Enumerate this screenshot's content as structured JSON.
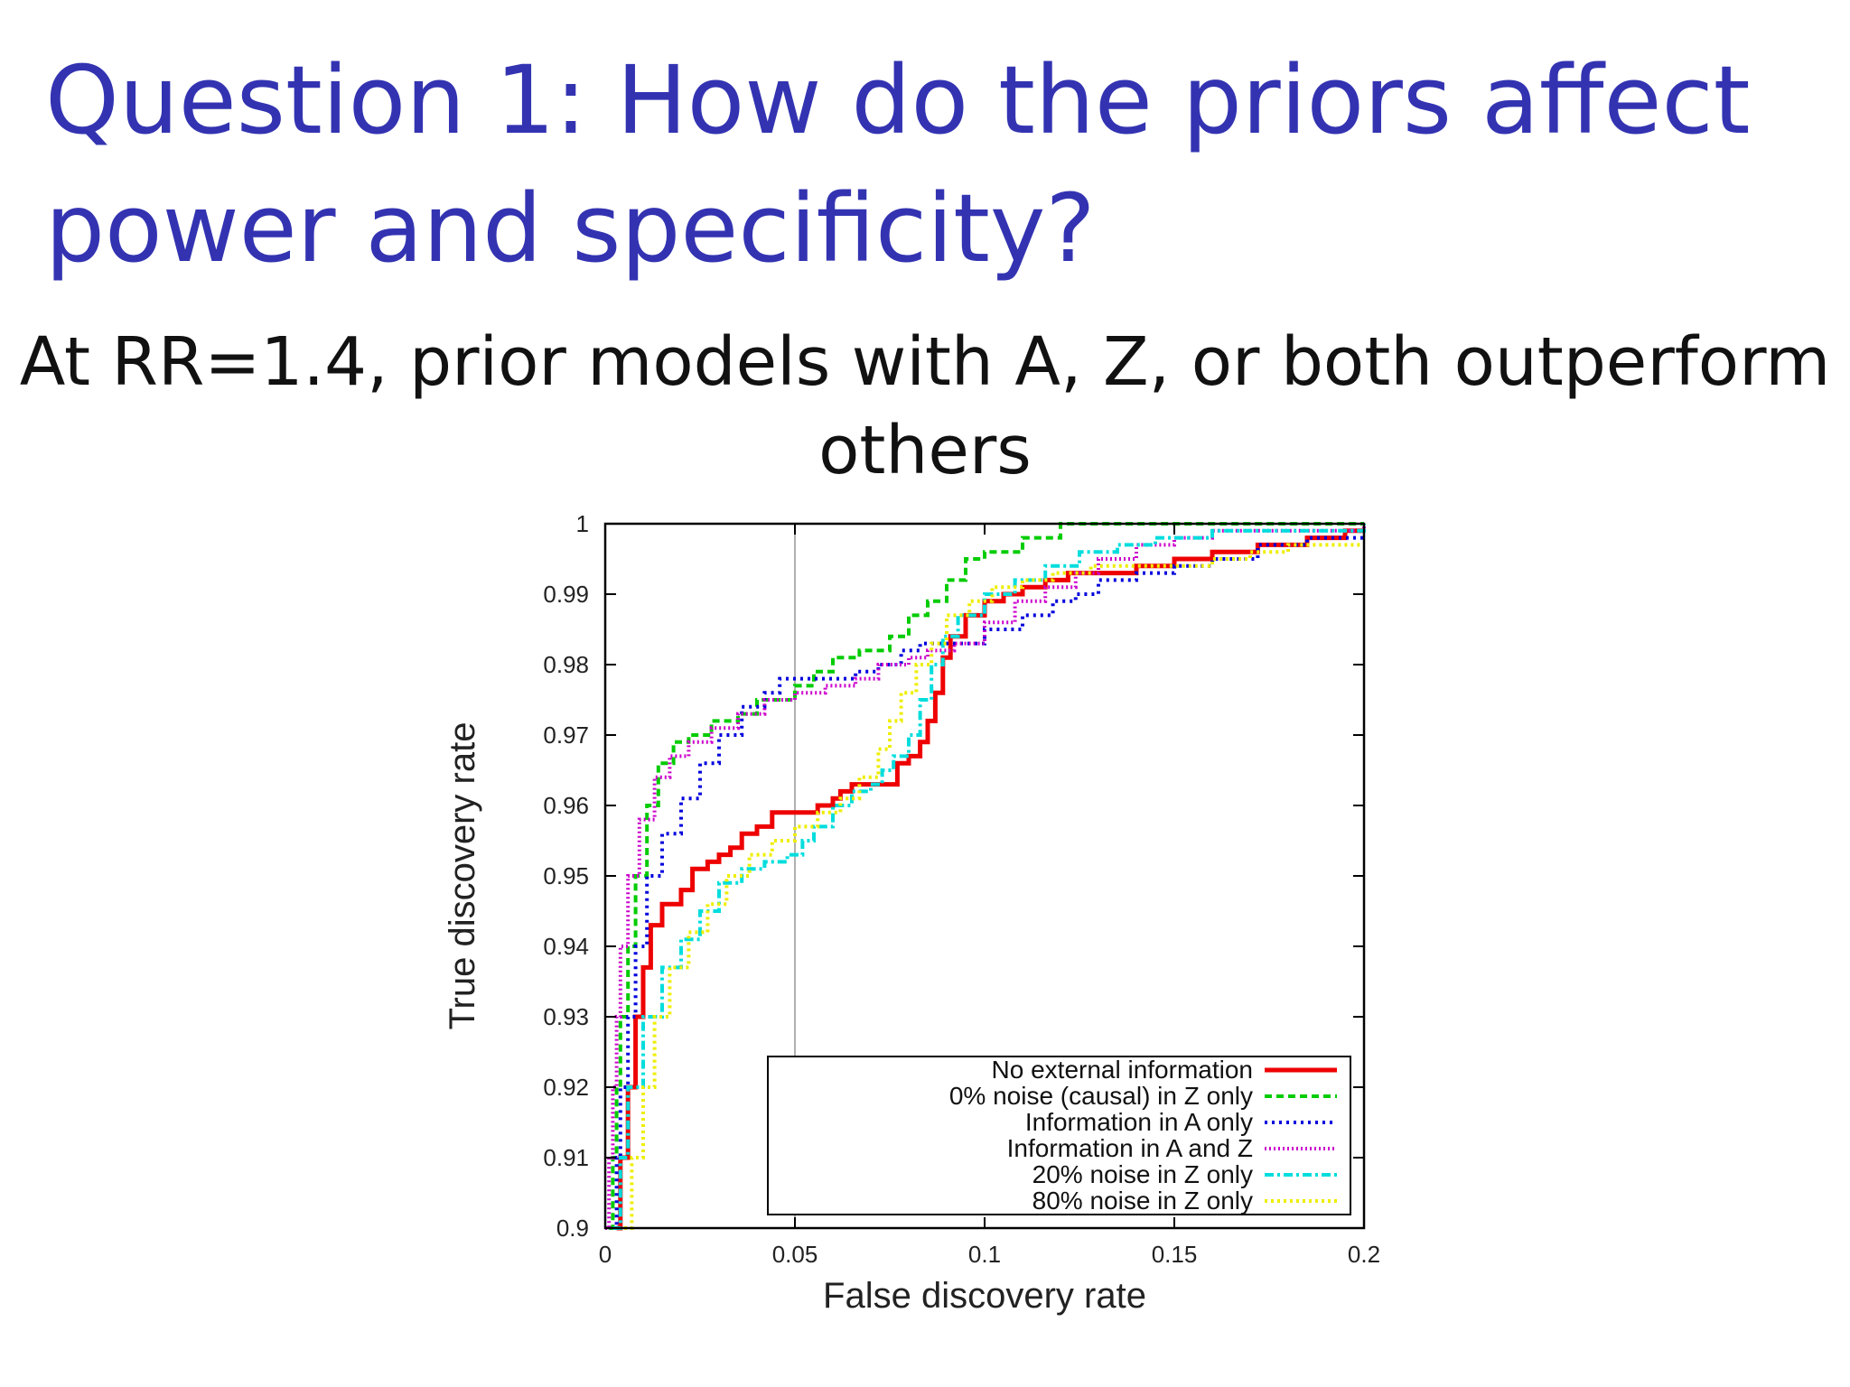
{
  "slide": {
    "title": "Question 1: How do the priors affect power and specificity?",
    "subtitle": "At RR=1.4, prior models with A, Z, or both outperform others"
  },
  "chart_data": {
    "type": "line",
    "xlabel": "False discovery rate",
    "ylabel": "True discovery rate",
    "xlim": [
      0,
      0.2
    ],
    "ylim": [
      0.9,
      1.0
    ],
    "x_ticks": [
      "0",
      "0.05",
      "0.1",
      "0.15",
      "0.2"
    ],
    "y_ticks": [
      "0.9",
      "0.91",
      "0.92",
      "0.93",
      "0.94",
      "0.95",
      "0.96",
      "0.97",
      "0.98",
      "0.99",
      "1"
    ],
    "reference_line_x": 0.05,
    "legend_position": "bottom-right",
    "series": [
      {
        "name": "No external information",
        "color": "#ee0000",
        "dash": "solid",
        "points": [
          [
            0.003,
            0.9
          ],
          [
            0.004,
            0.91
          ],
          [
            0.006,
            0.92
          ],
          [
            0.008,
            0.93
          ],
          [
            0.01,
            0.937
          ],
          [
            0.012,
            0.943
          ],
          [
            0.015,
            0.946
          ],
          [
            0.02,
            0.948
          ],
          [
            0.023,
            0.951
          ],
          [
            0.027,
            0.952
          ],
          [
            0.03,
            0.953
          ],
          [
            0.033,
            0.954
          ],
          [
            0.036,
            0.956
          ],
          [
            0.04,
            0.957
          ],
          [
            0.044,
            0.959
          ],
          [
            0.048,
            0.959
          ],
          [
            0.052,
            0.959
          ],
          [
            0.056,
            0.96
          ],
          [
            0.06,
            0.961
          ],
          [
            0.062,
            0.962
          ],
          [
            0.065,
            0.963
          ],
          [
            0.07,
            0.963
          ],
          [
            0.075,
            0.963
          ],
          [
            0.077,
            0.966
          ],
          [
            0.08,
            0.967
          ],
          [
            0.083,
            0.969
          ],
          [
            0.085,
            0.972
          ],
          [
            0.087,
            0.976
          ],
          [
            0.089,
            0.981
          ],
          [
            0.091,
            0.984
          ],
          [
            0.095,
            0.987
          ],
          [
            0.1,
            0.989
          ],
          [
            0.105,
            0.99
          ],
          [
            0.11,
            0.991
          ],
          [
            0.116,
            0.992
          ],
          [
            0.122,
            0.993
          ],
          [
            0.13,
            0.993
          ],
          [
            0.14,
            0.994
          ],
          [
            0.15,
            0.995
          ],
          [
            0.16,
            0.996
          ],
          [
            0.172,
            0.997
          ],
          [
            0.185,
            0.998
          ],
          [
            0.195,
            0.999
          ],
          [
            0.2,
            0.999
          ]
        ]
      },
      {
        "name": "0% noise (causal) in Z only",
        "color": "#00cc00",
        "dash": "8,5",
        "points": [
          [
            0.001,
            0.9
          ],
          [
            0.002,
            0.91
          ],
          [
            0.003,
            0.92
          ],
          [
            0.004,
            0.93
          ],
          [
            0.006,
            0.94
          ],
          [
            0.008,
            0.95
          ],
          [
            0.011,
            0.96
          ],
          [
            0.014,
            0.966
          ],
          [
            0.018,
            0.969
          ],
          [
            0.022,
            0.97
          ],
          [
            0.028,
            0.972
          ],
          [
            0.035,
            0.973
          ],
          [
            0.04,
            0.975
          ],
          [
            0.045,
            0.975
          ],
          [
            0.05,
            0.977
          ],
          [
            0.055,
            0.979
          ],
          [
            0.06,
            0.981
          ],
          [
            0.067,
            0.982
          ],
          [
            0.075,
            0.984
          ],
          [
            0.08,
            0.987
          ],
          [
            0.085,
            0.989
          ],
          [
            0.09,
            0.992
          ],
          [
            0.095,
            0.995
          ],
          [
            0.1,
            0.996
          ],
          [
            0.11,
            0.998
          ],
          [
            0.12,
            1.0
          ],
          [
            0.2,
            1.0
          ]
        ]
      },
      {
        "name": "Information in A only",
        "color": "#0000dd",
        "dash": "3,5",
        "points": [
          [
            0.002,
            0.9
          ],
          [
            0.003,
            0.91
          ],
          [
            0.004,
            0.92
          ],
          [
            0.006,
            0.93
          ],
          [
            0.008,
            0.94
          ],
          [
            0.011,
            0.95
          ],
          [
            0.015,
            0.956
          ],
          [
            0.02,
            0.961
          ],
          [
            0.025,
            0.966
          ],
          [
            0.03,
            0.97
          ],
          [
            0.036,
            0.974
          ],
          [
            0.042,
            0.976
          ],
          [
            0.046,
            0.978
          ],
          [
            0.052,
            0.978
          ],
          [
            0.06,
            0.978
          ],
          [
            0.066,
            0.979
          ],
          [
            0.072,
            0.98
          ],
          [
            0.078,
            0.982
          ],
          [
            0.083,
            0.983
          ],
          [
            0.088,
            0.983
          ],
          [
            0.095,
            0.983
          ],
          [
            0.1,
            0.985
          ],
          [
            0.11,
            0.987
          ],
          [
            0.118,
            0.989
          ],
          [
            0.124,
            0.99
          ],
          [
            0.13,
            0.992
          ],
          [
            0.14,
            0.993
          ],
          [
            0.15,
            0.994
          ],
          [
            0.16,
            0.995
          ],
          [
            0.172,
            0.997
          ],
          [
            0.185,
            0.998
          ],
          [
            0.2,
            0.998
          ]
        ]
      },
      {
        "name": "Information in A and Z",
        "color": "#cc00cc",
        "dash": "2,3",
        "points": [
          [
            0.0,
            0.9
          ],
          [
            0.001,
            0.91
          ],
          [
            0.002,
            0.92
          ],
          [
            0.003,
            0.93
          ],
          [
            0.004,
            0.94
          ],
          [
            0.006,
            0.95
          ],
          [
            0.009,
            0.958
          ],
          [
            0.013,
            0.964
          ],
          [
            0.017,
            0.967
          ],
          [
            0.022,
            0.969
          ],
          [
            0.028,
            0.971
          ],
          [
            0.035,
            0.973
          ],
          [
            0.042,
            0.975
          ],
          [
            0.05,
            0.976
          ],
          [
            0.058,
            0.977
          ],
          [
            0.066,
            0.978
          ],
          [
            0.072,
            0.98
          ],
          [
            0.08,
            0.981
          ],
          [
            0.085,
            0.982
          ],
          [
            0.092,
            0.983
          ],
          [
            0.1,
            0.986
          ],
          [
            0.108,
            0.989
          ],
          [
            0.116,
            0.991
          ],
          [
            0.124,
            0.993
          ],
          [
            0.13,
            0.995
          ],
          [
            0.14,
            0.997
          ],
          [
            0.15,
            0.998
          ],
          [
            0.16,
            0.999
          ],
          [
            0.2,
            1.0
          ]
        ]
      },
      {
        "name": "20% noise in Z only",
        "color": "#00dddd",
        "dash": "10,4,3,4",
        "points": [
          [
            0.002,
            0.9
          ],
          [
            0.004,
            0.91
          ],
          [
            0.006,
            0.92
          ],
          [
            0.01,
            0.93
          ],
          [
            0.015,
            0.937
          ],
          [
            0.02,
            0.941
          ],
          [
            0.025,
            0.945
          ],
          [
            0.03,
            0.949
          ],
          [
            0.036,
            0.951
          ],
          [
            0.042,
            0.952
          ],
          [
            0.048,
            0.953
          ],
          [
            0.052,
            0.955
          ],
          [
            0.055,
            0.957
          ],
          [
            0.06,
            0.96
          ],
          [
            0.065,
            0.962
          ],
          [
            0.07,
            0.963
          ],
          [
            0.073,
            0.965
          ],
          [
            0.076,
            0.967
          ],
          [
            0.08,
            0.97
          ],
          [
            0.083,
            0.975
          ],
          [
            0.086,
            0.98
          ],
          [
            0.089,
            0.984
          ],
          [
            0.093,
            0.987
          ],
          [
            0.1,
            0.99
          ],
          [
            0.108,
            0.992
          ],
          [
            0.116,
            0.994
          ],
          [
            0.125,
            0.996
          ],
          [
            0.135,
            0.997
          ],
          [
            0.145,
            0.998
          ],
          [
            0.16,
            0.999
          ],
          [
            0.2,
            1.0
          ]
        ]
      },
      {
        "name": "80% noise in Z only",
        "color": "#eeee00",
        "dash": "3,4",
        "points": [
          [
            0.005,
            0.9
          ],
          [
            0.007,
            0.91
          ],
          [
            0.01,
            0.92
          ],
          [
            0.013,
            0.93
          ],
          [
            0.017,
            0.937
          ],
          [
            0.022,
            0.942
          ],
          [
            0.027,
            0.946
          ],
          [
            0.032,
            0.95
          ],
          [
            0.038,
            0.953
          ],
          [
            0.044,
            0.955
          ],
          [
            0.05,
            0.957
          ],
          [
            0.056,
            0.959
          ],
          [
            0.062,
            0.961
          ],
          [
            0.067,
            0.964
          ],
          [
            0.072,
            0.968
          ],
          [
            0.075,
            0.972
          ],
          [
            0.078,
            0.976
          ],
          [
            0.082,
            0.98
          ],
          [
            0.086,
            0.983
          ],
          [
            0.09,
            0.987
          ],
          [
            0.096,
            0.989
          ],
          [
            0.102,
            0.991
          ],
          [
            0.11,
            0.992
          ],
          [
            0.118,
            0.993
          ],
          [
            0.128,
            0.994
          ],
          [
            0.14,
            0.994
          ],
          [
            0.15,
            0.994
          ],
          [
            0.16,
            0.995
          ],
          [
            0.17,
            0.996
          ],
          [
            0.18,
            0.997
          ],
          [
            0.2,
            0.997
          ]
        ]
      }
    ]
  }
}
